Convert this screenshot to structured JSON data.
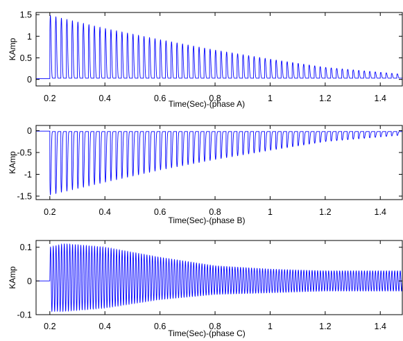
{
  "chart_data": [
    {
      "type": "line",
      "panel": "A",
      "xlabel": "Time(Sec)-(phase A)",
      "ylabel": "KAmp",
      "xlim": [
        0.15,
        1.48
      ],
      "ylim": [
        -0.15,
        1.55
      ],
      "xticks": [
        0.2,
        0.4,
        0.6,
        0.8,
        1,
        1.2,
        1.4
      ],
      "xtick_labels": [
        "0.2",
        "0.4",
        "0.6",
        "0.8",
        "1",
        "1.2",
        "1.4"
      ],
      "yticks": [
        0,
        0.5,
        1,
        1.5
      ],
      "ytick_labels": [
        "0",
        "0.5",
        "1",
        "1.5"
      ],
      "series": [
        {
          "color": "#0000ff",
          "waveform": "unipolar decaying pulses",
          "fault_time": 0.2,
          "frequency_hz": 50,
          "baseline_before_fault": 0.02,
          "peak_envelope_t": [
            0.2,
            0.4,
            0.6,
            0.8,
            1.0,
            1.2,
            1.48
          ],
          "peak_envelope_y": [
            1.48,
            1.18,
            0.92,
            0.68,
            0.47,
            0.28,
            0.12
          ],
          "trough": 0.03
        }
      ]
    },
    {
      "type": "line",
      "panel": "B",
      "xlabel": "Time(Sec)-(phase B)",
      "ylabel": "KAmp",
      "xlim": [
        0.15,
        1.48
      ],
      "ylim": [
        -1.58,
        0.12
      ],
      "xticks": [
        0.2,
        0.4,
        0.6,
        0.8,
        1,
        1.2,
        1.4
      ],
      "xtick_labels": [
        "0.2",
        "0.4",
        "0.6",
        "0.8",
        "1",
        "1.2",
        "1.4"
      ],
      "yticks": [
        -1.5,
        -1,
        -0.5,
        0
      ],
      "ytick_labels": [
        "-1.5",
        "-1",
        "-0.5",
        "0"
      ],
      "series": [
        {
          "color": "#0000ff",
          "waveform": "unipolar decaying pulses (negative)",
          "fault_time": 0.2,
          "frequency_hz": 50,
          "baseline_before_fault": -0.01,
          "peak_envelope_t": [
            0.2,
            0.4,
            0.6,
            0.8,
            1.0,
            1.2,
            1.48
          ],
          "peak_envelope_y": [
            -1.47,
            -1.18,
            -0.9,
            -0.66,
            -0.45,
            -0.25,
            -0.1
          ],
          "trough": -0.02
        }
      ]
    },
    {
      "type": "line",
      "panel": "C",
      "xlabel": "Time(Sec)-(phase C)",
      "ylabel": "KAmp",
      "xlim": [
        0.15,
        1.48
      ],
      "ylim": [
        -0.1,
        0.12
      ],
      "xticks": [
        0.2,
        0.4,
        0.6,
        0.8,
        1,
        1.2,
        1.4
      ],
      "xtick_labels": [
        "0.2",
        "0.4",
        "0.6",
        "0.8",
        "1",
        "1.2",
        "1.4"
      ],
      "yticks": [
        -0.1,
        0,
        0.1
      ],
      "ytick_labels": [
        "-0.1",
        "0",
        "0.1"
      ],
      "series": [
        {
          "color": "#0000ff",
          "waveform": "bipolar oscillation",
          "fault_time": 0.2,
          "frequency_hz": 100,
          "baseline_before_fault": 0,
          "max_envelope_t": [
            0.2,
            0.25,
            0.4,
            0.6,
            0.8,
            1.0,
            1.2,
            1.48
          ],
          "max_envelope_y": [
            0.1,
            0.11,
            0.1,
            0.07,
            0.045,
            0.035,
            0.03,
            0.03
          ],
          "min_envelope_t": [
            0.2,
            0.25,
            0.4,
            0.6,
            0.8,
            1.0,
            1.2,
            1.48
          ],
          "min_envelope_y": [
            -0.09,
            -0.09,
            -0.08,
            -0.055,
            -0.04,
            -0.035,
            -0.03,
            -0.03
          ]
        }
      ]
    }
  ]
}
